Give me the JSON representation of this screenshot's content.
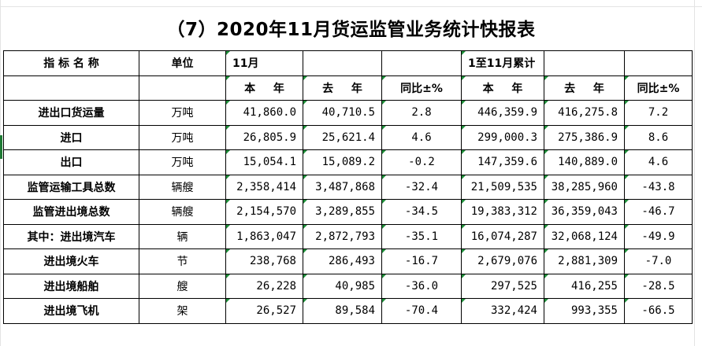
{
  "title": "（7）2020年11月货运监管业务统计快报表",
  "header": {
    "indicator_name": "指 标 名 称",
    "unit": "单位",
    "month": "11月",
    "cumulative": "1至11月累计",
    "this_year": "本 年",
    "last_year": "去 年",
    "yoy": "同比±%",
    "this_year_cum": "本 年",
    "last_year_cum": "去 年",
    "yoy_cum": "同比±%"
  },
  "rows": [
    {
      "name": "进出口货运量",
      "unit": "万吨",
      "m_this": "41,860.0",
      "m_last": "40,710.5",
      "m_yoy": "2.8",
      "c_this": "446,359.9",
      "c_last": "416,275.8",
      "c_yoy": "7.2"
    },
    {
      "name": "进口",
      "unit": "万吨",
      "m_this": "26,805.9",
      "m_last": "25,621.4",
      "m_yoy": "4.6",
      "c_this": "299,000.3",
      "c_last": "275,386.9",
      "c_yoy": "8.6"
    },
    {
      "name": "出口",
      "unit": "万吨",
      "m_this": "15,054.1",
      "m_last": "15,089.2",
      "m_yoy": "-0.2",
      "c_this": "147,359.6",
      "c_last": "140,889.0",
      "c_yoy": "4.6"
    },
    {
      "name": "监管运输工具总数",
      "unit": "辆艘",
      "m_this": "2,358,414",
      "m_last": "3,487,868",
      "m_yoy": "-32.4",
      "c_this": "21,509,535",
      "c_last": "38,285,960",
      "c_yoy": "-43.8"
    },
    {
      "name": "监管进出境总数",
      "unit": "辆艘",
      "m_this": "2,154,570",
      "m_last": "3,289,855",
      "m_yoy": "-34.5",
      "c_this": "19,383,312",
      "c_last": "36,359,043",
      "c_yoy": "-46.7"
    },
    {
      "name": "其中：进出境汽车",
      "unit": "辆",
      "m_this": "1,863,047",
      "m_last": "2,872,793",
      "m_yoy": "-35.1",
      "c_this": "16,074,287",
      "c_last": "32,068,124",
      "c_yoy": "-49.9"
    },
    {
      "name": "进出境火车",
      "unit": "节",
      "m_this": "238,768",
      "m_last": "286,493",
      "m_yoy": "-16.7",
      "c_this": "2,679,076",
      "c_last": "2,881,309",
      "c_yoy": "-7.0"
    },
    {
      "name": "进出境船舶",
      "unit": "艘",
      "m_this": "26,228",
      "m_last": "40,985",
      "m_yoy": "-36.0",
      "c_this": "297,525",
      "c_last": "416,255",
      "c_yoy": "-28.5"
    },
    {
      "name": "进出境飞机",
      "unit": "架",
      "m_this": "26,527",
      "m_last": "89,584",
      "m_yoy": "-70.4",
      "c_this": "332,424",
      "c_last": "993,355",
      "c_yoy": "-66.5"
    }
  ],
  "colors": {
    "border": "#000000",
    "cell_marker": "#1f8f3a",
    "gridline": "#e3e3e3"
  }
}
